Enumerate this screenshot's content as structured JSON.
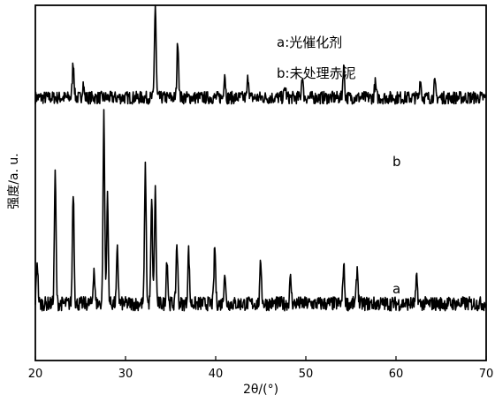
{
  "chart_data": {
    "type": "line",
    "title": "",
    "xlabel": "2θ/(°)",
    "ylabel": "强度/a. u.",
    "xlim": [
      20,
      70
    ],
    "x_ticks": [
      "20",
      "30",
      "40",
      "50",
      "60",
      "70"
    ],
    "y_ticks_labeled": false,
    "grid": false,
    "legend": {
      "placement": "top-center",
      "entries": [
        "a:光催化剂",
        "b:未处理赤泥"
      ]
    },
    "series": [
      {
        "name": "b",
        "label_text": "b",
        "baseline": 0.74,
        "noise": 0.018,
        "peaks": [
          {
            "x": 24.2,
            "h": 0.1
          },
          {
            "x": 25.3,
            "h": 0.04
          },
          {
            "x": 33.3,
            "h": 0.26
          },
          {
            "x": 35.8,
            "h": 0.16
          },
          {
            "x": 41.0,
            "h": 0.07
          },
          {
            "x": 43.6,
            "h": 0.06
          },
          {
            "x": 47.7,
            "h": 0.03
          },
          {
            "x": 49.6,
            "h": 0.06
          },
          {
            "x": 54.2,
            "h": 0.09
          },
          {
            "x": 57.7,
            "h": 0.04
          },
          {
            "x": 62.7,
            "h": 0.05
          },
          {
            "x": 64.3,
            "h": 0.04
          }
        ]
      },
      {
        "name": "a",
        "label_text": "a",
        "baseline": 0.16,
        "noise": 0.02,
        "peaks": [
          {
            "x": 20.2,
            "h": 0.12
          },
          {
            "x": 22.2,
            "h": 0.36
          },
          {
            "x": 24.2,
            "h": 0.32
          },
          {
            "x": 26.5,
            "h": 0.1
          },
          {
            "x": 27.6,
            "h": 0.53
          },
          {
            "x": 28.0,
            "h": 0.3
          },
          {
            "x": 29.1,
            "h": 0.15
          },
          {
            "x": 32.2,
            "h": 0.38
          },
          {
            "x": 32.9,
            "h": 0.29
          },
          {
            "x": 33.3,
            "h": 0.32
          },
          {
            "x": 34.6,
            "h": 0.13
          },
          {
            "x": 35.7,
            "h": 0.17
          },
          {
            "x": 37.0,
            "h": 0.15
          },
          {
            "x": 39.9,
            "h": 0.16
          },
          {
            "x": 41.0,
            "h": 0.09
          },
          {
            "x": 45.0,
            "h": 0.12
          },
          {
            "x": 48.3,
            "h": 0.07
          },
          {
            "x": 54.2,
            "h": 0.11
          },
          {
            "x": 55.7,
            "h": 0.1
          },
          {
            "x": 62.3,
            "h": 0.07
          }
        ]
      }
    ]
  }
}
